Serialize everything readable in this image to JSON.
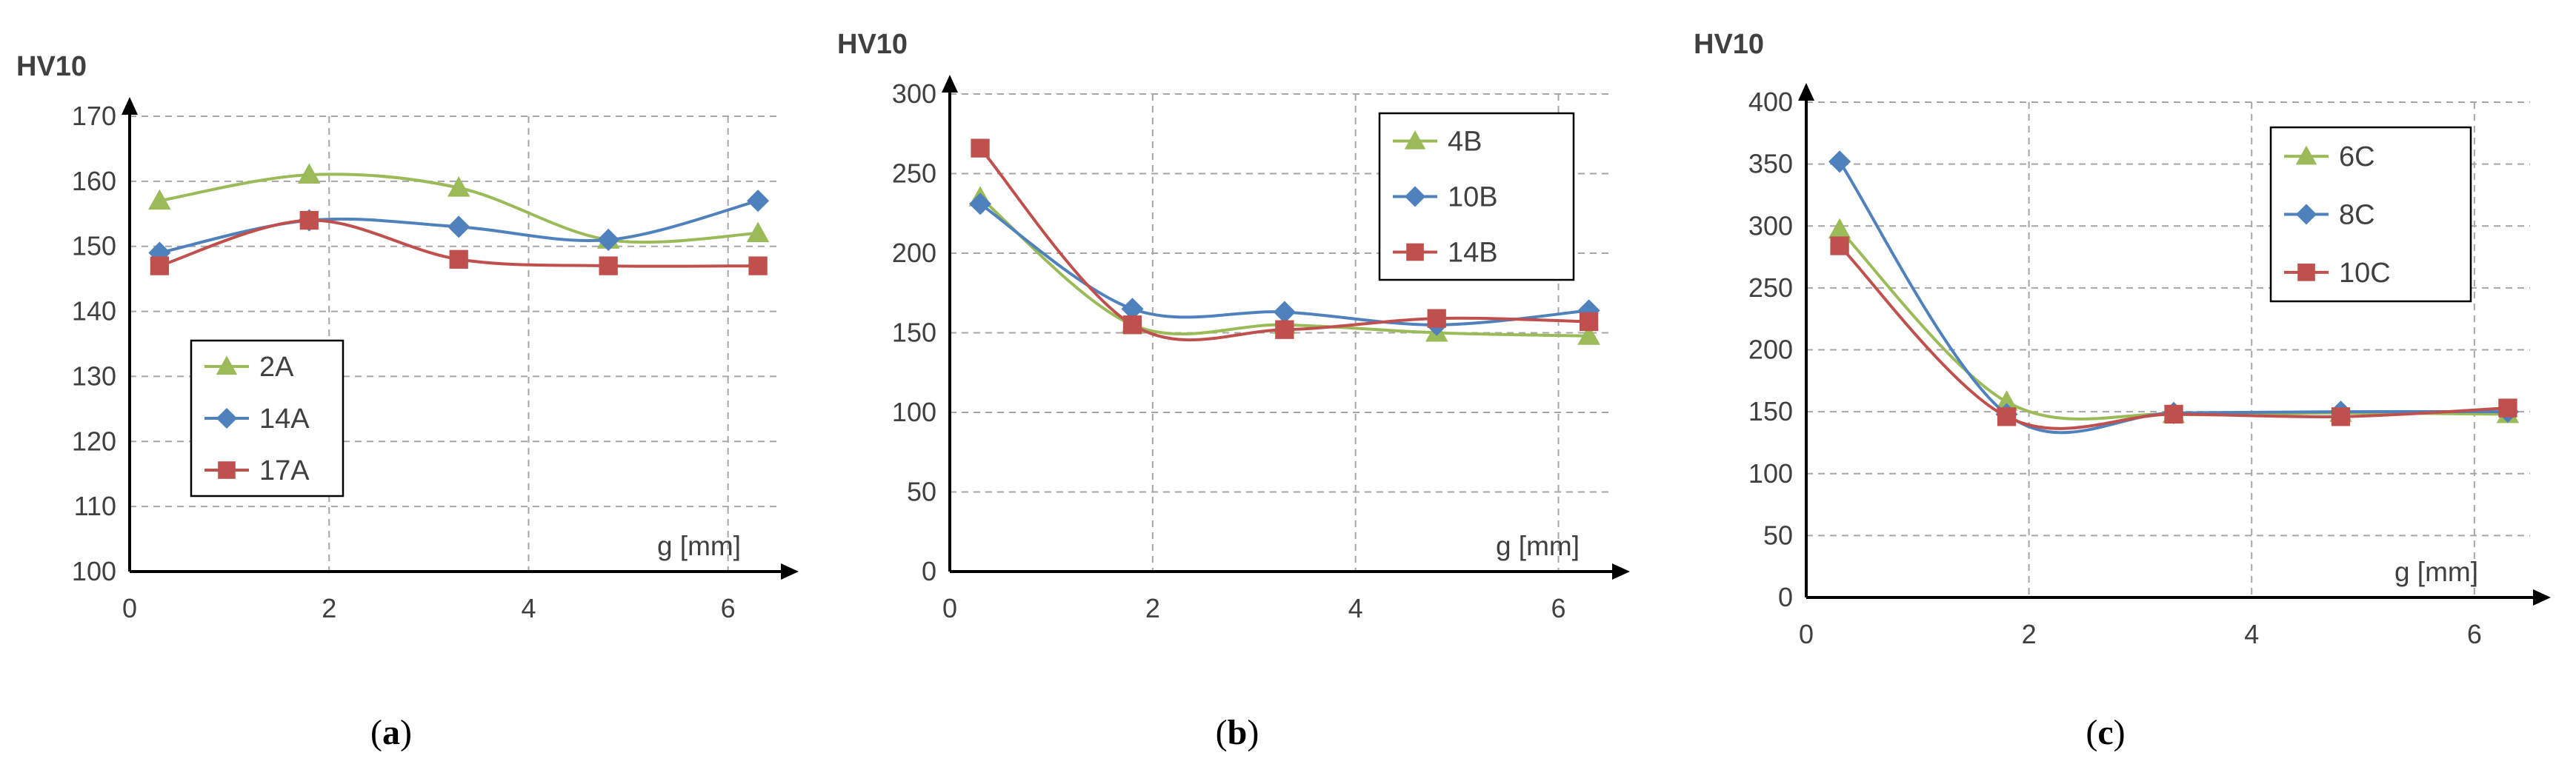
{
  "chart_data": [
    {
      "type": "line",
      "caption": {
        "open": "(",
        "letter": "a",
        "close": ")"
      },
      "ylabel": "HV10",
      "xlabel": "g [mm]",
      "ylim": [
        100,
        170
      ],
      "ytick_step": 10,
      "yticks": [
        "100",
        "110",
        "120",
        "130",
        "140",
        "150",
        "160",
        "170"
      ],
      "xlim": [
        0,
        6.5
      ],
      "xticks": [
        "0",
        "2",
        "4",
        "6"
      ],
      "x": [
        0.3,
        1.8,
        3.3,
        4.8,
        6.3
      ],
      "legend_position": "bottom-left",
      "series": [
        {
          "name": "2A",
          "marker": "triangle",
          "color": "#9bbb59",
          "values": [
            157,
            161,
            159,
            151,
            152
          ]
        },
        {
          "name": "14A",
          "marker": "diamond",
          "color": "#4f81bd",
          "values": [
            149,
            154,
            153,
            151,
            157
          ]
        },
        {
          "name": "17A",
          "marker": "square",
          "color": "#c0504d",
          "values": [
            147,
            154,
            148,
            147,
            147
          ]
        }
      ]
    },
    {
      "type": "line",
      "caption": {
        "open": "(",
        "letter": "b",
        "close": ")"
      },
      "ylabel": "HV10",
      "xlabel": "g [mm]",
      "ylim": [
        0,
        300
      ],
      "ytick_step": 50,
      "yticks": [
        "0",
        "50",
        "100",
        "150",
        "200",
        "250",
        "300"
      ],
      "xlim": [
        0,
        6.5
      ],
      "xticks": [
        "0",
        "2",
        "4",
        "6"
      ],
      "x": [
        0.3,
        1.8,
        3.3,
        4.8,
        6.3
      ],
      "legend_position": "top-right",
      "series": [
        {
          "name": "4B",
          "marker": "triangle",
          "color": "#9bbb59",
          "values": [
            235,
            155,
            155,
            150,
            148
          ]
        },
        {
          "name": "10B",
          "marker": "diamond",
          "color": "#4f81bd",
          "values": [
            231,
            165,
            163,
            155,
            164
          ]
        },
        {
          "name": "14B",
          "marker": "square",
          "color": "#c0504d",
          "values": [
            266,
            155,
            152,
            159,
            157
          ]
        }
      ]
    },
    {
      "type": "line",
      "caption": {
        "open": "(",
        "letter": "c",
        "close": ")"
      },
      "ylabel": "HV10",
      "xlabel": "g [mm]",
      "ylim": [
        0,
        400
      ],
      "ytick_step": 50,
      "yticks": [
        "0",
        "50",
        "100",
        "150",
        "200",
        "250",
        "300",
        "350",
        "400"
      ],
      "xlim": [
        0,
        6.5
      ],
      "xticks": [
        "0",
        "2",
        "4",
        "6"
      ],
      "x": [
        0.3,
        1.8,
        3.3,
        4.8,
        6.3
      ],
      "legend_position": "top-right",
      "series": [
        {
          "name": "6C",
          "marker": "triangle",
          "color": "#9bbb59",
          "values": [
            297,
            158,
            148,
            149,
            148
          ]
        },
        {
          "name": "8C",
          "marker": "diamond",
          "color": "#4f81bd",
          "values": [
            352,
            148,
            149,
            150,
            150
          ]
        },
        {
          "name": "10C",
          "marker": "square",
          "color": "#c0504d",
          "values": [
            284,
            146,
            148,
            146,
            153
          ]
        }
      ]
    }
  ]
}
